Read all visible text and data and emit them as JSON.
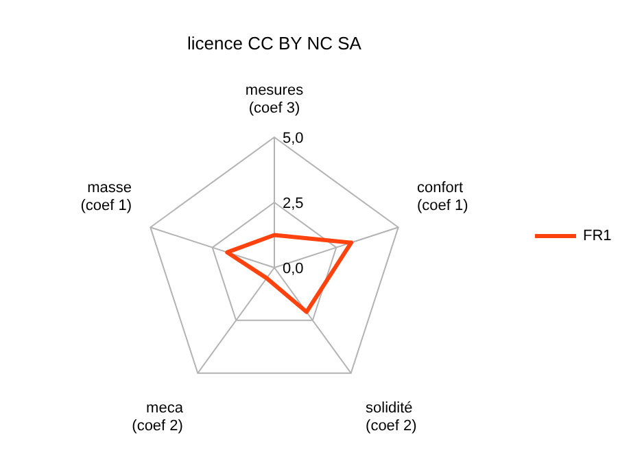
{
  "chart_data": {
    "type": "radar",
    "title": "licence CC BY NC SA",
    "categories": [
      "mesures\n(coef 3)",
      "confort\n(coef 1)",
      "solidité\n(coef 2)",
      "meca\n(coef 2)",
      "masse\n(coef 1)"
    ],
    "series": [
      {
        "name": "FR1",
        "color": "#ff420e",
        "values": [
          1.25,
          3.1,
          2.1,
          0.5,
          1.9
        ]
      }
    ],
    "ylim": [
      0,
      5
    ],
    "yticks": [
      {
        "value": 0,
        "label": "0,0"
      },
      {
        "value": 2.5,
        "label": "2,5"
      },
      {
        "value": 5,
        "label": "5,0"
      }
    ],
    "grid": true,
    "legend": "right"
  }
}
